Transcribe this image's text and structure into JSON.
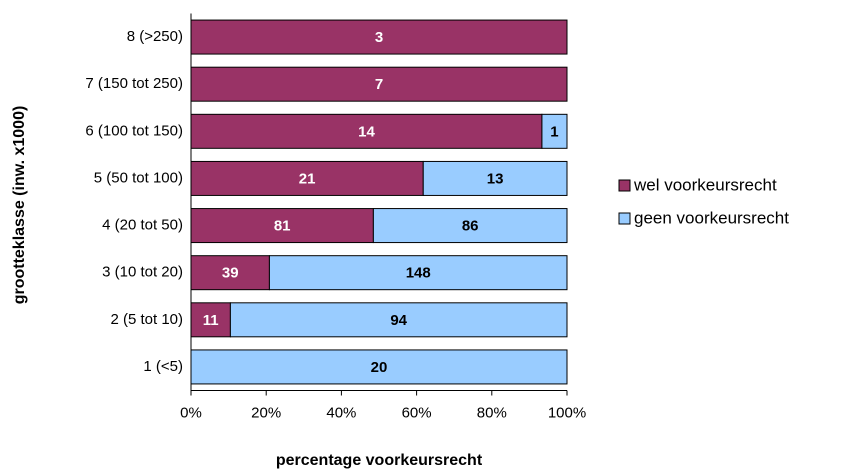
{
  "chart_data": {
    "type": "bar",
    "orientation": "horizontal",
    "stacking": "percent",
    "y_label": "grootteklasse (inw. x1000)",
    "x_label": "percentage voorkeursrecht",
    "categories": [
      "8 (>250)",
      "7 (150 tot 250)",
      "6 (100 tot 150)",
      "5 (50 tot 100)",
      "4 (20 tot 50)",
      "3 (10 tot 20)",
      "2 (5 tot 10)",
      "1 (<5)"
    ],
    "series": [
      {
        "name": "wel voorkeursrecht",
        "color": "#993366",
        "label_color": "#ffffff",
        "values": [
          3,
          7,
          14,
          21,
          81,
          39,
          11,
          null
        ]
      },
      {
        "name": "geen voorkeursrecht",
        "color": "#99ccff",
        "label_color": "#000000",
        "values": [
          null,
          null,
          1,
          13,
          86,
          148,
          94,
          20
        ]
      }
    ],
    "xlim": [
      0,
      100
    ],
    "xticks": [
      {
        "value": 0,
        "label": "0%"
      },
      {
        "value": 20,
        "label": "20%"
      },
      {
        "value": 40,
        "label": "40%"
      },
      {
        "value": 60,
        "label": "60%"
      },
      {
        "value": 80,
        "label": "80%"
      },
      {
        "value": 100,
        "label": "100%"
      }
    ],
    "legend": "right"
  }
}
